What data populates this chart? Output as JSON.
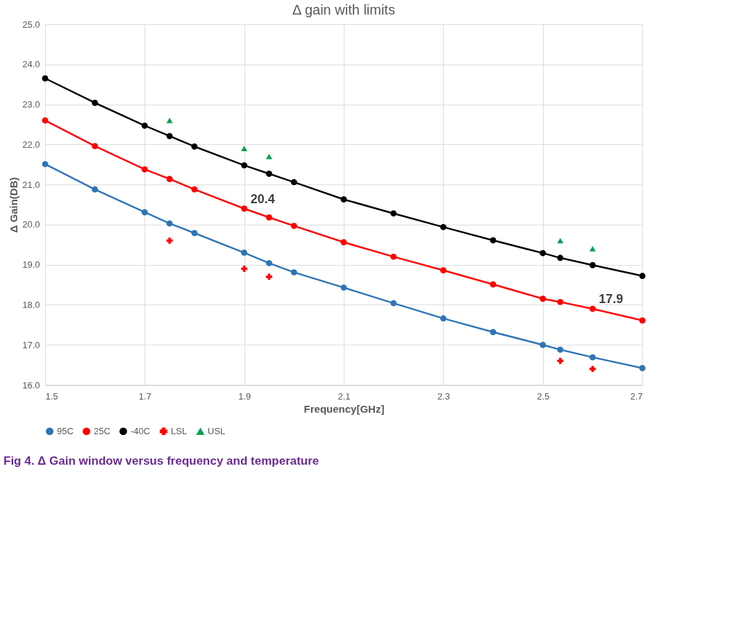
{
  "chart_data": {
    "type": "line",
    "title": "Δ gain with limits",
    "xlabel": "Frequency[GHz]",
    "ylabel": "Δ Gain(DB)",
    "x": [
      1.5,
      1.6,
      1.7,
      1.75,
      1.8,
      1.9,
      1.95,
      2.0,
      2.1,
      2.2,
      2.3,
      2.4,
      2.5,
      2.535,
      2.6,
      2.7
    ],
    "series": [
      {
        "name": "95C",
        "color": "#2e75b6",
        "marker": "circle",
        "values": [
          21.51,
          20.88,
          20.31,
          20.03,
          19.79,
          19.3,
          19.04,
          18.81,
          18.43,
          18.04,
          17.66,
          17.32,
          17.0,
          16.88,
          16.69,
          16.42
        ]
      },
      {
        "name": "25C",
        "color": "#ff0000",
        "marker": "circle",
        "values": [
          22.6,
          21.96,
          21.38,
          21.14,
          20.88,
          20.4,
          20.18,
          19.97,
          19.56,
          19.2,
          18.86,
          18.51,
          18.15,
          18.07,
          17.9,
          17.61
        ]
      },
      {
        "name": "-40C",
        "color": "#000000",
        "marker": "circle",
        "values": [
          23.65,
          23.04,
          22.47,
          22.21,
          21.95,
          21.48,
          21.27,
          21.06,
          20.63,
          20.28,
          19.94,
          19.61,
          19.29,
          19.17,
          18.99,
          18.72
        ]
      },
      {
        "name": "LSL",
        "type": "scatter",
        "color": "#ff0000",
        "marker": "cross",
        "x": [
          1.75,
          1.9,
          1.95,
          2.535,
          2.6
        ],
        "values": [
          19.6,
          18.9,
          18.7,
          16.6,
          16.4
        ]
      },
      {
        "name": "USL",
        "type": "scatter",
        "color": "#00a050",
        "marker": "triangle",
        "x": [
          1.75,
          1.9,
          1.95,
          2.535,
          2.6
        ],
        "values": [
          22.6,
          21.9,
          21.7,
          19.6,
          19.4
        ]
      }
    ],
    "xlim": [
      1.5,
      2.7
    ],
    "xticks": [
      1.5,
      1.7,
      1.9,
      2.1,
      2.3,
      2.5,
      2.7
    ],
    "ylim": [
      16,
      25
    ],
    "yticks": [
      {
        "value": 16,
        "label": "16.0"
      },
      {
        "value": 17,
        "label": "17.0"
      },
      {
        "value": 18,
        "label": "18.0"
      },
      {
        "value": 19,
        "label": "19.0"
      },
      {
        "value": 20,
        "label": "20.0"
      },
      {
        "value": 21,
        "label": "21.0"
      },
      {
        "value": 22,
        "label": "22.0"
      },
      {
        "value": 23,
        "label": "23.0"
      },
      {
        "value": 24,
        "label": "24.0"
      },
      {
        "value": 25,
        "label": "25.0"
      }
    ],
    "grid": true,
    "legend": "bottom",
    "annotations": [
      {
        "text": "20.4",
        "x": 1.9,
        "y": 20.4
      },
      {
        "text": "17.9",
        "x": 2.6,
        "y": 17.9
      },
      "Fig 4.    Δ Gain window versus frequency and temperature"
    ]
  }
}
